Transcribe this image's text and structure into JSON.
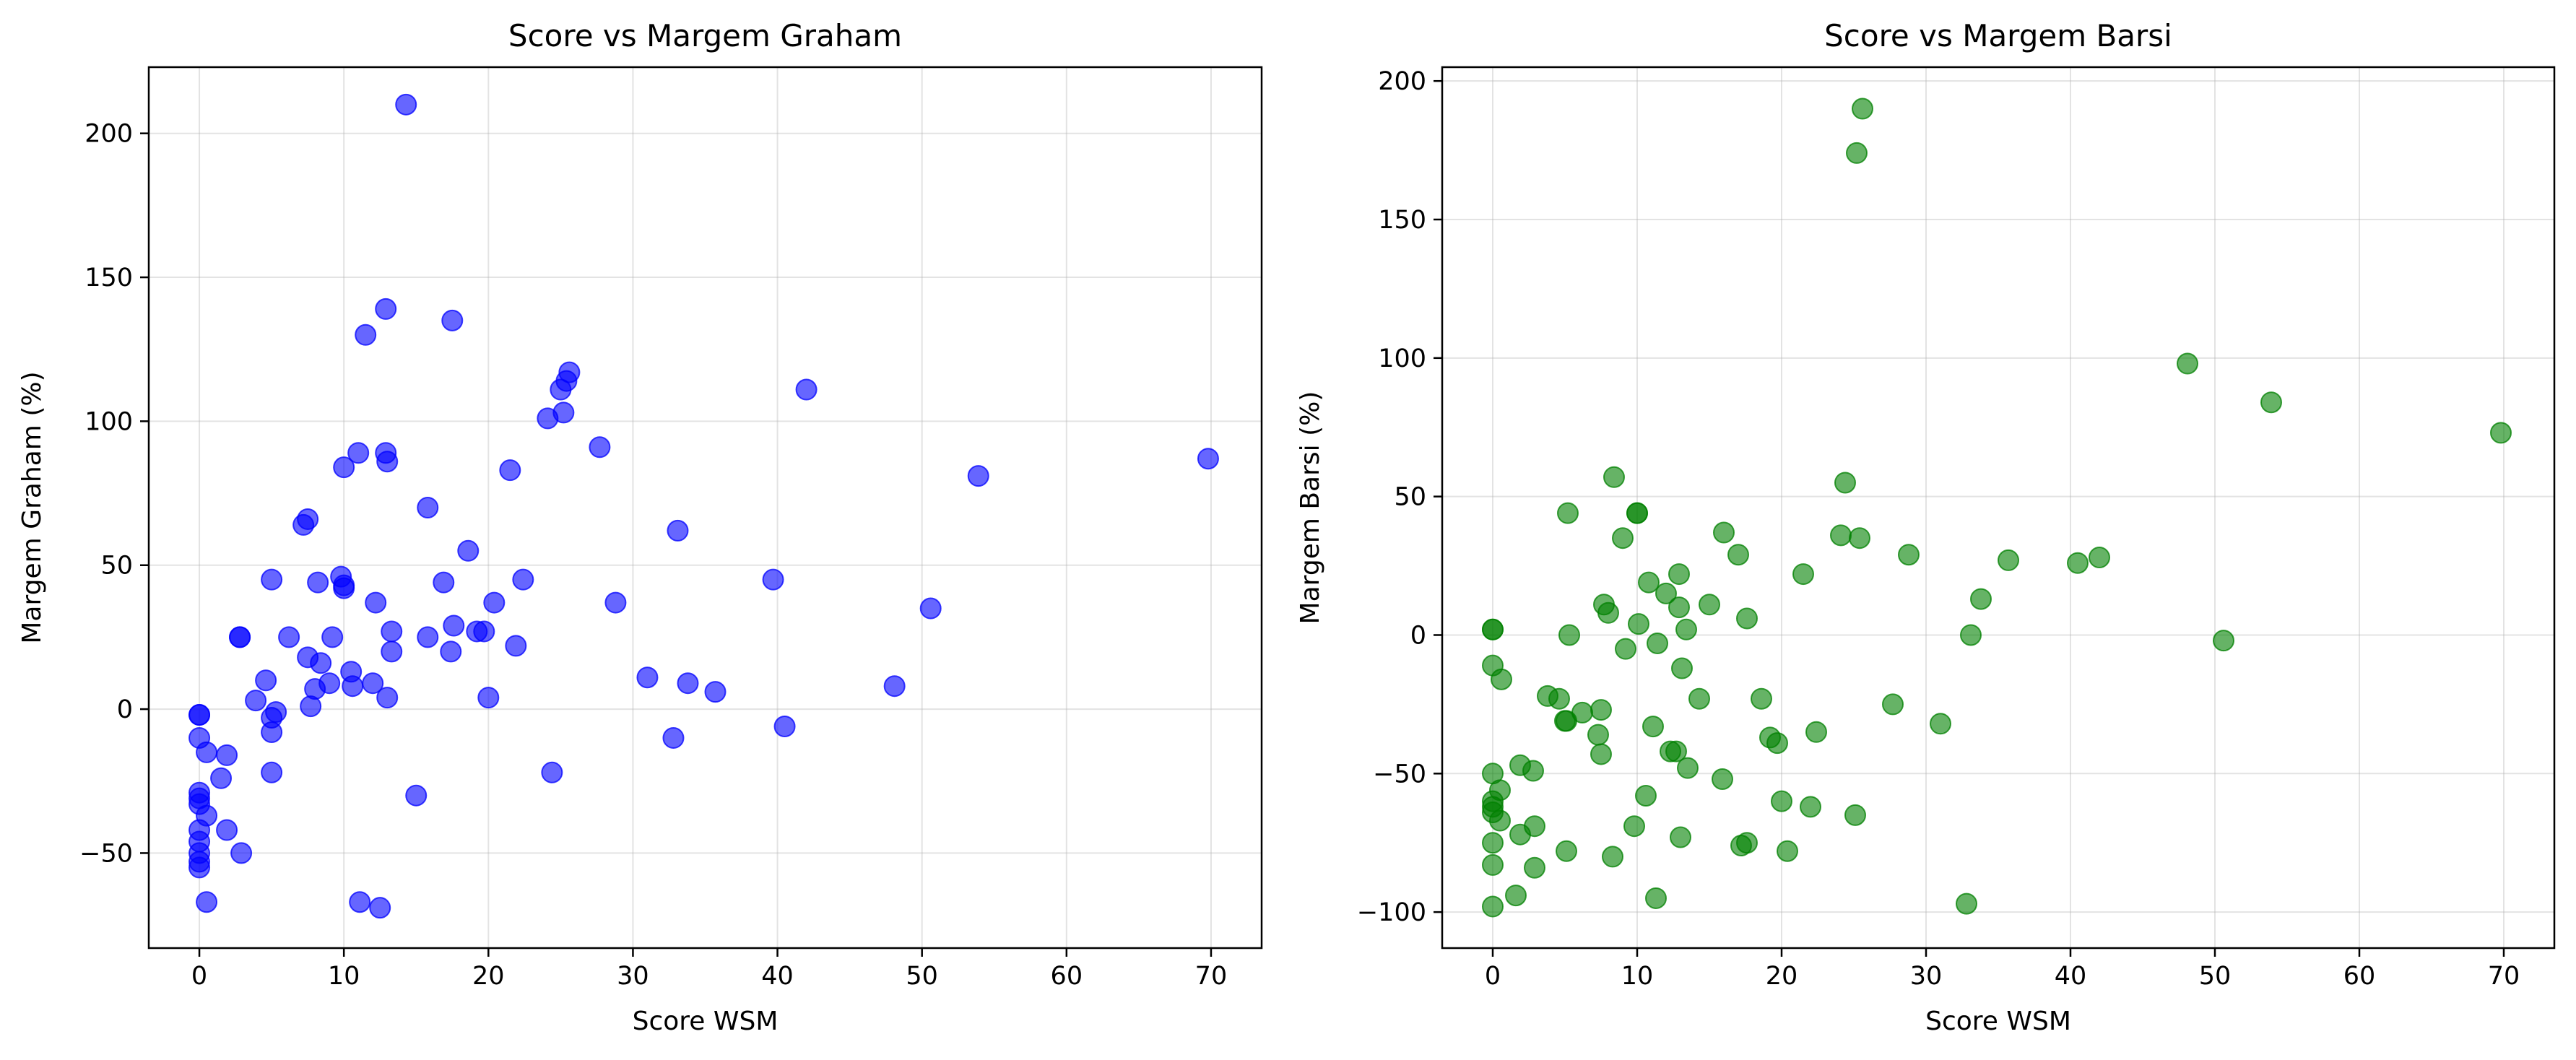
{
  "chart_data": [
    {
      "type": "scatter",
      "title": "Score vs Margem Graham",
      "xlabel": "Score WSM",
      "ylabel": "Margem Graham (%)",
      "xlim": [
        -3.5,
        73.5
      ],
      "ylim": [
        -83,
        223
      ],
      "xticks": [
        0,
        10,
        20,
        30,
        40,
        50,
        60,
        70
      ],
      "yticks": [
        -50,
        0,
        50,
        100,
        150,
        200
      ],
      "grid": true,
      "color": "#0000ff",
      "points": [
        [
          0,
          -2
        ],
        [
          0,
          -2
        ],
        [
          0,
          -10
        ],
        [
          0,
          -29
        ],
        [
          0,
          -31
        ],
        [
          0,
          -33
        ],
        [
          0,
          -42
        ],
        [
          0,
          -46
        ],
        [
          0,
          -50
        ],
        [
          0,
          -53
        ],
        [
          0,
          -55
        ],
        [
          0.5,
          -37
        ],
        [
          0.5,
          -15
        ],
        [
          0.5,
          -67
        ],
        [
          1.5,
          -24
        ],
        [
          1.9,
          -16
        ],
        [
          1.9,
          -42
        ],
        [
          2.8,
          25
        ],
        [
          2.8,
          25
        ],
        [
          2.9,
          -50
        ],
        [
          3.9,
          3
        ],
        [
          4.6,
          10
        ],
        [
          5,
          45
        ],
        [
          5,
          -22
        ],
        [
          5,
          -8
        ],
        [
          5,
          -3
        ],
        [
          5.3,
          -1
        ],
        [
          6.2,
          25
        ],
        [
          7.2,
          64
        ],
        [
          7.5,
          66
        ],
        [
          7.5,
          18
        ],
        [
          7.7,
          1
        ],
        [
          8,
          7
        ],
        [
          8.2,
          44
        ],
        [
          8.4,
          16
        ],
        [
          9,
          9
        ],
        [
          9.2,
          25
        ],
        [
          9.8,
          46
        ],
        [
          10,
          43
        ],
        [
          10,
          42
        ],
        [
          10,
          84
        ],
        [
          10.5,
          13
        ],
        [
          10.6,
          8
        ],
        [
          11,
          89
        ],
        [
          11.1,
          -67
        ],
        [
          11.5,
          130
        ],
        [
          12,
          9
        ],
        [
          12.2,
          37
        ],
        [
          12.5,
          -69
        ],
        [
          12.9,
          139
        ],
        [
          12.9,
          89
        ],
        [
          13,
          86
        ],
        [
          13,
          4
        ],
        [
          13.3,
          27
        ],
        [
          13.3,
          20
        ],
        [
          14.3,
          210
        ],
        [
          15,
          -30
        ],
        [
          15.8,
          25
        ],
        [
          15.8,
          70
        ],
        [
          16.9,
          44
        ],
        [
          17.4,
          20
        ],
        [
          17.5,
          135
        ],
        [
          17.6,
          29
        ],
        [
          18.6,
          55
        ],
        [
          19.2,
          27
        ],
        [
          19.7,
          27
        ],
        [
          20,
          4
        ],
        [
          20.4,
          37
        ],
        [
          21.5,
          83
        ],
        [
          21.9,
          22
        ],
        [
          22.4,
          45
        ],
        [
          24.1,
          101
        ],
        [
          24.4,
          -22
        ],
        [
          25,
          111
        ],
        [
          25.2,
          103
        ],
        [
          25.4,
          114
        ],
        [
          25.6,
          117
        ],
        [
          27.7,
          91
        ],
        [
          28.8,
          37
        ],
        [
          31,
          11
        ],
        [
          32.8,
          -10
        ],
        [
          33.1,
          62
        ],
        [
          33.8,
          9
        ],
        [
          35.7,
          6
        ],
        [
          39.7,
          45
        ],
        [
          40.5,
          -6
        ],
        [
          42,
          111
        ],
        [
          48.1,
          8
        ],
        [
          50.6,
          35
        ],
        [
          53.9,
          81
        ],
        [
          69.8,
          87
        ]
      ]
    },
    {
      "type": "scatter",
      "title": "Score vs Margem Barsi",
      "xlabel": "Score WSM",
      "ylabel": "Margem Barsi (%)",
      "xlim": [
        -3.5,
        73.5
      ],
      "ylim": [
        -113,
        205
      ],
      "xticks": [
        0,
        10,
        20,
        30,
        40,
        50,
        60,
        70
      ],
      "yticks": [
        -100,
        -50,
        0,
        50,
        100,
        150,
        200
      ],
      "grid": true,
      "color": "#008000",
      "points": [
        [
          0,
          2
        ],
        [
          0,
          2
        ],
        [
          0,
          -11
        ],
        [
          0,
          -50
        ],
        [
          0,
          -60
        ],
        [
          0,
          -62
        ],
        [
          0,
          -64
        ],
        [
          0,
          -75
        ],
        [
          0,
          -83
        ],
        [
          0,
          -98
        ],
        [
          0.5,
          -56
        ],
        [
          0.5,
          -67
        ],
        [
          0.6,
          -16
        ],
        [
          1.6,
          -94
        ],
        [
          1.9,
          -72
        ],
        [
          1.9,
          -47
        ],
        [
          2.8,
          -49
        ],
        [
          2.9,
          -84
        ],
        [
          2.9,
          -69
        ],
        [
          3.8,
          -22
        ],
        [
          4.6,
          -23
        ],
        [
          5,
          -31
        ],
        [
          5.1,
          -31
        ],
        [
          5.1,
          -78
        ],
        [
          5.2,
          44
        ],
        [
          5.3,
          0
        ],
        [
          6.2,
          -28
        ],
        [
          7.3,
          -36
        ],
        [
          7.5,
          -43
        ],
        [
          7.5,
          -27
        ],
        [
          7.7,
          11
        ],
        [
          8,
          8
        ],
        [
          8.3,
          -80
        ],
        [
          8.4,
          57
        ],
        [
          9,
          35
        ],
        [
          9.2,
          -5
        ],
        [
          9.8,
          -69
        ],
        [
          10,
          44
        ],
        [
          10,
          44
        ],
        [
          10.1,
          4
        ],
        [
          10.6,
          -58
        ],
        [
          10.8,
          19
        ],
        [
          11.1,
          -33
        ],
        [
          11.3,
          -95
        ],
        [
          11.4,
          -3
        ],
        [
          12,
          15
        ],
        [
          12.3,
          -42
        ],
        [
          12.7,
          -42
        ],
        [
          12.9,
          22
        ],
        [
          12.9,
          10
        ],
        [
          13,
          -73
        ],
        [
          13.1,
          -12
        ],
        [
          13.4,
          2
        ],
        [
          13.5,
          -48
        ],
        [
          14.3,
          -23
        ],
        [
          15,
          11
        ],
        [
          15.9,
          -52
        ],
        [
          16,
          37
        ],
        [
          17,
          29
        ],
        [
          17.2,
          -76
        ],
        [
          17.6,
          6
        ],
        [
          17.6,
          -75
        ],
        [
          18.6,
          -23
        ],
        [
          19.2,
          -37
        ],
        [
          19.7,
          -39
        ],
        [
          20,
          -60
        ],
        [
          20.4,
          -78
        ],
        [
          21.5,
          22
        ],
        [
          22,
          -62
        ],
        [
          22.4,
          -35
        ],
        [
          24.1,
          36
        ],
        [
          24.4,
          55
        ],
        [
          25.1,
          -65
        ],
        [
          25.2,
          174
        ],
        [
          25.4,
          35
        ],
        [
          25.6,
          190
        ],
        [
          27.7,
          -25
        ],
        [
          28.8,
          29
        ],
        [
          31,
          -32
        ],
        [
          32.8,
          -97
        ],
        [
          33.1,
          0
        ],
        [
          33.8,
          13
        ],
        [
          35.7,
          27
        ],
        [
          40.5,
          26
        ],
        [
          42,
          28
        ],
        [
          48.1,
          98
        ],
        [
          50.6,
          -2
        ],
        [
          53.9,
          84
        ],
        [
          69.8,
          73
        ]
      ]
    }
  ]
}
